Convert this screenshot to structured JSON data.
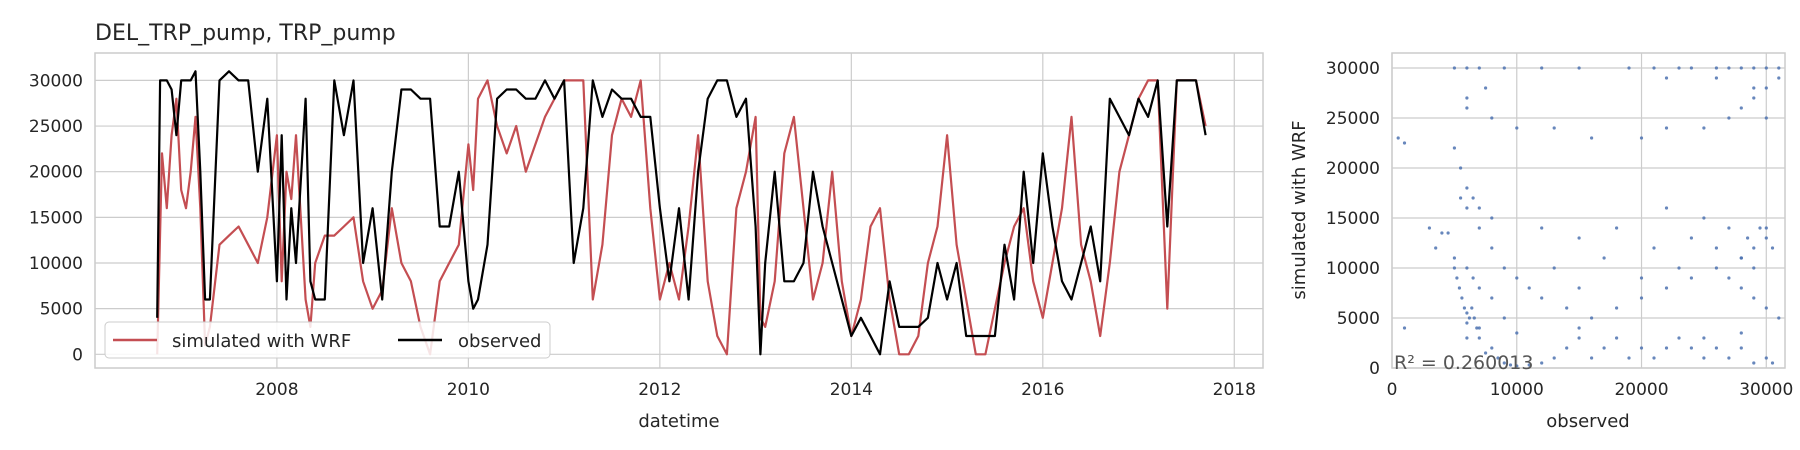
{
  "chart_data": [
    {
      "type": "line",
      "title": "DEL_TRP_pump, TRP_pump",
      "xlabel": "datetime",
      "ylabel": "",
      "xlim": [
        2006.1,
        2018.3
      ],
      "ylim": [
        -1500,
        33000
      ],
      "xticks": [
        "2008",
        "2010",
        "2012",
        "2014",
        "2016",
        "2018"
      ],
      "yticks": [
        "0",
        "5000",
        "10000",
        "15000",
        "20000",
        "25000",
        "30000"
      ],
      "grid": true,
      "legend": {
        "placement": "lower-left",
        "columns": 2
      },
      "series": [
        {
          "name": "simulated with WRF",
          "color": "#c44e52",
          "x": [
            2006.75,
            2006.8,
            2006.85,
            2006.9,
            2006.95,
            2007.0,
            2007.05,
            2007.1,
            2007.15,
            2007.2,
            2007.25,
            2007.3,
            2007.4,
            2007.5,
            2007.6,
            2007.7,
            2007.8,
            2007.9,
            2008.0,
            2008.05,
            2008.1,
            2008.15,
            2008.2,
            2008.3,
            2008.35,
            2008.4,
            2008.5,
            2008.6,
            2008.7,
            2008.8,
            2008.9,
            2009.0,
            2009.1,
            2009.2,
            2009.3,
            2009.4,
            2009.5,
            2009.6,
            2009.7,
            2009.8,
            2009.9,
            2010.0,
            2010.05,
            2010.1,
            2010.2,
            2010.3,
            2010.4,
            2010.5,
            2010.6,
            2010.7,
            2010.8,
            2010.9,
            2011.0,
            2011.1,
            2011.2,
            2011.3,
            2011.4,
            2011.5,
            2011.6,
            2011.7,
            2011.8,
            2011.9,
            2012.0,
            2012.1,
            2012.2,
            2012.3,
            2012.4,
            2012.5,
            2012.6,
            2012.7,
            2012.8,
            2012.9,
            2013.0,
            2013.05,
            2013.1,
            2013.2,
            2013.3,
            2013.4,
            2013.5,
            2013.6,
            2013.7,
            2013.8,
            2013.9,
            2014.0,
            2014.1,
            2014.2,
            2014.3,
            2014.4,
            2014.5,
            2014.6,
            2014.7,
            2014.8,
            2014.9,
            2015.0,
            2015.1,
            2015.2,
            2015.3,
            2015.4,
            2015.5,
            2015.6,
            2015.7,
            2015.8,
            2015.9,
            2016.0,
            2016.1,
            2016.2,
            2016.3,
            2016.4,
            2016.5,
            2016.6,
            2016.7,
            2016.8,
            2016.9,
            2017.0,
            2017.1,
            2017.2,
            2017.3,
            2017.4,
            2017.5,
            2017.6,
            2017.7
          ],
          "y": [
            0,
            22000,
            16000,
            24000,
            28000,
            18000,
            16000,
            20000,
            26000,
            16000,
            1000,
            3000,
            12000,
            13000,
            14000,
            12000,
            10000,
            15000,
            24000,
            8000,
            20000,
            17000,
            24000,
            6000,
            3000,
            10000,
            13000,
            13000,
            14000,
            15000,
            8000,
            5000,
            7000,
            16000,
            10000,
            8000,
            3000,
            0,
            8000,
            10000,
            12000,
            23000,
            18000,
            28000,
            30000,
            25000,
            22000,
            25000,
            20000,
            23000,
            26000,
            28000,
            30000,
            30000,
            30000,
            6000,
            12000,
            24000,
            28000,
            26000,
            30000,
            16000,
            6000,
            10000,
            6000,
            14000,
            24000,
            8000,
            2000,
            0,
            16000,
            20000,
            26000,
            4000,
            3000,
            8000,
            22000,
            26000,
            16000,
            6000,
            10000,
            20000,
            8000,
            2000,
            6000,
            14000,
            16000,
            6000,
            0,
            0,
            2000,
            10000,
            14000,
            24000,
            12000,
            6000,
            0,
            0,
            5000,
            10000,
            14000,
            16000,
            8000,
            4000,
            10000,
            16000,
            26000,
            12000,
            8000,
            2000,
            10000,
            20000,
            24000,
            28000,
            30000,
            30000,
            5000,
            30000,
            30000,
            30000,
            25000
          ]
        },
        {
          "name": "observed",
          "color": "#000000",
          "x": [
            2006.75,
            2006.78,
            2006.85,
            2006.9,
            2006.95,
            2007.0,
            2007.05,
            2007.1,
            2007.15,
            2007.2,
            2007.25,
            2007.3,
            2007.4,
            2007.5,
            2007.6,
            2007.7,
            2007.8,
            2007.9,
            2008.0,
            2008.05,
            2008.1,
            2008.15,
            2008.2,
            2008.3,
            2008.35,
            2008.4,
            2008.5,
            2008.6,
            2008.7,
            2008.8,
            2008.9,
            2009.0,
            2009.1,
            2009.2,
            2009.3,
            2009.4,
            2009.5,
            2009.6,
            2009.7,
            2009.8,
            2009.9,
            2010.0,
            2010.05,
            2010.1,
            2010.2,
            2010.3,
            2010.4,
            2010.5,
            2010.6,
            2010.7,
            2010.8,
            2010.9,
            2011.0,
            2011.1,
            2011.2,
            2011.3,
            2011.4,
            2011.5,
            2011.6,
            2011.7,
            2011.8,
            2011.9,
            2012.0,
            2012.1,
            2012.2,
            2012.3,
            2012.4,
            2012.5,
            2012.6,
            2012.7,
            2012.8,
            2012.9,
            2013.0,
            2013.05,
            2013.1,
            2013.2,
            2013.3,
            2013.4,
            2013.5,
            2013.6,
            2013.7,
            2013.8,
            2013.9,
            2014.0,
            2014.1,
            2014.2,
            2014.3,
            2014.4,
            2014.5,
            2014.6,
            2014.7,
            2014.8,
            2014.9,
            2015.0,
            2015.1,
            2015.2,
            2015.3,
            2015.4,
            2015.5,
            2015.6,
            2015.7,
            2015.8,
            2015.9,
            2016.0,
            2016.1,
            2016.2,
            2016.3,
            2016.4,
            2016.5,
            2016.6,
            2016.7,
            2016.8,
            2016.9,
            2017.0,
            2017.1,
            2017.2,
            2017.3,
            2017.4,
            2017.5,
            2017.6,
            2017.7
          ],
          "y": [
            4000,
            30000,
            30000,
            29000,
            24000,
            30000,
            30000,
            30000,
            31000,
            20000,
            6000,
            6000,
            30000,
            31000,
            30000,
            30000,
            20000,
            28000,
            8000,
            24000,
            6000,
            16000,
            10000,
            28000,
            8000,
            6000,
            6000,
            30000,
            24000,
            30000,
            10000,
            16000,
            6000,
            20000,
            29000,
            29000,
            28000,
            28000,
            14000,
            14000,
            20000,
            8000,
            5000,
            6000,
            12000,
            28000,
            29000,
            29000,
            28000,
            28000,
            30000,
            28000,
            30000,
            10000,
            16000,
            30000,
            26000,
            29000,
            28000,
            28000,
            26000,
            26000,
            16000,
            8000,
            16000,
            6000,
            20000,
            28000,
            30000,
            30000,
            26000,
            28000,
            14000,
            0,
            10000,
            20000,
            8000,
            8000,
            10000,
            20000,
            14000,
            10000,
            6000,
            2000,
            4000,
            2000,
            0,
            8000,
            3000,
            3000,
            3000,
            4000,
            10000,
            6000,
            10000,
            2000,
            2000,
            2000,
            2000,
            12000,
            6000,
            20000,
            10000,
            22000,
            14000,
            8000,
            6000,
            10000,
            14000,
            8000,
            28000,
            26000,
            24000,
            28000,
            26000,
            30000,
            14000,
            30000,
            30000,
            30000,
            24000
          ]
        }
      ]
    },
    {
      "type": "scatter",
      "title": "",
      "xlabel": "observed",
      "ylabel": "simulated with WRF",
      "xlim": [
        0,
        31500
      ],
      "ylim": [
        0,
        31500
      ],
      "xticks": [
        "0",
        "10000",
        "20000",
        "30000"
      ],
      "yticks": [
        "0",
        "5000",
        "10000",
        "15000",
        "20000",
        "25000",
        "30000"
      ],
      "grid": true,
      "annotation": "R² = 0.260013",
      "series": [
        {
          "name": "",
          "color": "#4c72b0",
          "x": [
            500,
            1000,
            3000,
            3500,
            4000,
            4500,
            5000,
            5200,
            5400,
            5600,
            5800,
            6000,
            6200,
            6400,
            6600,
            6800,
            7000,
            7500,
            8000,
            8500,
            9000,
            9500,
            10000,
            11000,
            12000,
            13000,
            14000,
            15000,
            16000,
            17000,
            18000,
            19000,
            20000,
            21000,
            22000,
            23000,
            24000,
            25000,
            26000,
            27000,
            28000,
            29000,
            30000,
            30500,
            5500,
            6000,
            7000,
            8000,
            9000,
            10000,
            11000,
            12000,
            14000,
            16000,
            18000,
            20000,
            22000,
            24000,
            26000,
            28000,
            29000,
            30000,
            6000,
            8000,
            10000,
            13000,
            16000,
            20000,
            22000,
            25000,
            27000,
            28000,
            29000,
            30000,
            5000,
            6000,
            7000,
            9000,
            12000,
            15000,
            19000,
            21000,
            23000,
            24000,
            26000,
            27000,
            28000,
            29000,
            30000,
            31000,
            5000,
            5500,
            6000,
            6500,
            7000,
            8000,
            12000,
            15000,
            18000,
            22000,
            25000,
            27000,
            28500,
            29500,
            30000,
            5000,
            6000,
            6500,
            7000,
            8000,
            13000,
            17000,
            21000,
            24000,
            26000,
            28000,
            29000,
            30500,
            6000,
            7000,
            9000,
            15000,
            20000,
            23000,
            27000,
            28000,
            29000,
            30000,
            31000,
            6000,
            7500,
            22000,
            26000,
            29000,
            30000,
            31000,
            1000,
            6000,
            10000,
            15000,
            25000,
            28000
          ],
          "y": [
            23000,
            22500,
            14000,
            12000,
            13500,
            13500,
            10000,
            9000,
            8000,
            7000,
            6000,
            5500,
            5000,
            6000,
            5000,
            4000,
            3000,
            1500,
            2000,
            1000,
            500,
            300,
            200,
            300,
            500,
            1000,
            2000,
            3000,
            1000,
            2000,
            3000,
            1000,
            2000,
            1000,
            2000,
            3000,
            2000,
            1000,
            2000,
            1000,
            2000,
            500,
            1000,
            500,
            17000,
            16000,
            14000,
            12000,
            10000,
            9000,
            8000,
            7000,
            6000,
            5000,
            6000,
            7000,
            8000,
            9000,
            10000,
            11000,
            12000,
            13000,
            26000,
            25000,
            24000,
            24000,
            23000,
            23000,
            24000,
            24000,
            25000,
            26000,
            27000,
            25000,
            30000,
            30000,
            30000,
            30000,
            30000,
            30000,
            30000,
            30000,
            30000,
            30000,
            30000,
            30000,
            30000,
            30000,
            30000,
            30000,
            22000,
            20000,
            18000,
            17000,
            16000,
            15000,
            14000,
            13000,
            14000,
            16000,
            15000,
            14000,
            13000,
            14000,
            14000,
            11000,
            10000,
            9000,
            8000,
            7000,
            10000,
            11000,
            12000,
            13000,
            12000,
            11000,
            10000,
            12000,
            3000,
            4000,
            5000,
            8000,
            9000,
            10000,
            9000,
            8000,
            7000,
            6000,
            5000,
            27000,
            28000,
            29000,
            29000,
            28000,
            28000,
            29000,
            4000,
            4500,
            3500,
            4000,
            3000,
            3500
          ]
        }
      ]
    }
  ]
}
